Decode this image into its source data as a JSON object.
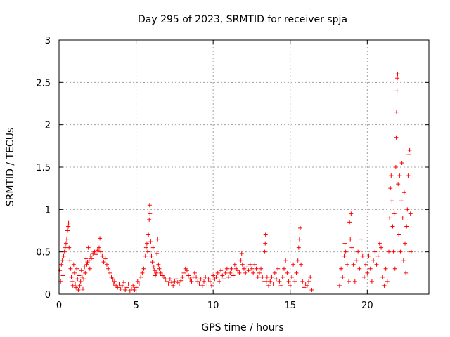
{
  "chart_data": {
    "type": "scatter",
    "title": "Day 295 of 2023, SRMTID for receiver spja",
    "xlabel": "GPS time / hours",
    "ylabel": "SRMTID / TECUs",
    "xlim": [
      0,
      24
    ],
    "ylim": [
      0,
      3
    ],
    "grid": true,
    "marker": "+",
    "marker_color": "#ff0000",
    "x_ticks": [
      0,
      5,
      10,
      15,
      20
    ],
    "x_tick_labels": [
      "0",
      "5",
      "10",
      "15",
      "20"
    ],
    "y_ticks": [
      0,
      0.5,
      1,
      1.5,
      2,
      2.5,
      3
    ],
    "y_tick_labels": [
      "0",
      "0.5",
      "1",
      "1.5",
      "2",
      "2.5",
      "3"
    ],
    "series": [
      {
        "name": "SRMTID",
        "points": [
          [
            0.05,
            0.28
          ],
          [
            0.1,
            0.15
          ],
          [
            0.15,
            0.35
          ],
          [
            0.2,
            0.4
          ],
          [
            0.25,
            0.22
          ],
          [
            0.3,
            0.45
          ],
          [
            0.35,
            0.5
          ],
          [
            0.4,
            0.55
          ],
          [
            0.45,
            0.6
          ],
          [
            0.5,
            0.65
          ],
          [
            0.55,
            0.75
          ],
          [
            0.6,
            0.8
          ],
          [
            0.62,
            0.84
          ],
          [
            0.65,
            0.55
          ],
          [
            0.7,
            0.4
          ],
          [
            0.75,
            0.3
          ],
          [
            0.8,
            0.2
          ],
          [
            0.85,
            0.15
          ],
          [
            0.9,
            0.1
          ],
          [
            0.95,
            0.35
          ],
          [
            1.0,
            0.25
          ],
          [
            1.05,
            0.12
          ],
          [
            1.1,
            0.08
          ],
          [
            1.15,
            0.3
          ],
          [
            1.2,
            0.18
          ],
          [
            1.25,
            0.05
          ],
          [
            1.3,
            0.22
          ],
          [
            1.35,
            0.1
          ],
          [
            1.4,
            0.15
          ],
          [
            1.45,
            0.28
          ],
          [
            1.5,
            0.2
          ],
          [
            1.55,
            0.06
          ],
          [
            1.6,
            0.18
          ],
          [
            1.65,
            0.32
          ],
          [
            1.7,
            0.25
          ],
          [
            1.75,
            0.42
          ],
          [
            1.8,
            0.35
          ],
          [
            1.85,
            0.38
          ],
          [
            1.9,
            0.55
          ],
          [
            1.95,
            0.4
          ],
          [
            2.0,
            0.3
          ],
          [
            2.05,
            0.45
          ],
          [
            2.1,
            0.42
          ],
          [
            2.2,
            0.48
          ],
          [
            2.3,
            0.5
          ],
          [
            2.4,
            0.47
          ],
          [
            2.5,
            0.52
          ],
          [
            2.6,
            0.55
          ],
          [
            2.65,
            0.66
          ],
          [
            2.7,
            0.5
          ],
          [
            2.8,
            0.45
          ],
          [
            2.9,
            0.38
          ],
          [
            3.0,
            0.42
          ],
          [
            3.1,
            0.35
          ],
          [
            3.2,
            0.3
          ],
          [
            3.3,
            0.25
          ],
          [
            3.4,
            0.2
          ],
          [
            3.5,
            0.18
          ],
          [
            3.55,
            0.12
          ],
          [
            3.6,
            0.15
          ],
          [
            3.7,
            0.1
          ],
          [
            3.8,
            0.08
          ],
          [
            3.9,
            0.12
          ],
          [
            4.0,
            0.06
          ],
          [
            4.1,
            0.1
          ],
          [
            4.2,
            0.14
          ],
          [
            4.3,
            0.05
          ],
          [
            4.4,
            0.08
          ],
          [
            4.5,
            0.12
          ],
          [
            4.6,
            0.04
          ],
          [
            4.7,
            0.06
          ],
          [
            4.8,
            0.1
          ],
          [
            4.9,
            0.05
          ],
          [
            5.0,
            0.08
          ],
          [
            5.1,
            0.15
          ],
          [
            5.2,
            0.12
          ],
          [
            5.3,
            0.2
          ],
          [
            5.4,
            0.25
          ],
          [
            5.5,
            0.3
          ],
          [
            5.6,
            0.45
          ],
          [
            5.65,
            0.55
          ],
          [
            5.7,
            0.6
          ],
          [
            5.75,
            0.5
          ],
          [
            5.8,
            0.7
          ],
          [
            5.85,
            0.88
          ],
          [
            5.88,
            1.05
          ],
          [
            5.9,
            0.95
          ],
          [
            5.95,
            0.62
          ],
          [
            6.0,
            0.45
          ],
          [
            6.05,
            0.38
          ],
          [
            6.1,
            0.55
          ],
          [
            6.15,
            0.32
          ],
          [
            6.2,
            0.28
          ],
          [
            6.25,
            0.22
          ],
          [
            6.3,
            0.25
          ],
          [
            6.35,
            0.48
          ],
          [
            6.4,
            0.65
          ],
          [
            6.45,
            0.35
          ],
          [
            6.5,
            0.3
          ],
          [
            6.6,
            0.25
          ],
          [
            6.7,
            0.22
          ],
          [
            6.8,
            0.2
          ],
          [
            6.9,
            0.18
          ],
          [
            7.0,
            0.15
          ],
          [
            7.1,
            0.12
          ],
          [
            7.2,
            0.18
          ],
          [
            7.3,
            0.14
          ],
          [
            7.4,
            0.1
          ],
          [
            7.5,
            0.15
          ],
          [
            7.6,
            0.18
          ],
          [
            7.7,
            0.14
          ],
          [
            7.8,
            0.12
          ],
          [
            7.9,
            0.16
          ],
          [
            8.0,
            0.2
          ],
          [
            8.1,
            0.25
          ],
          [
            8.2,
            0.3
          ],
          [
            8.3,
            0.28
          ],
          [
            8.4,
            0.22
          ],
          [
            8.5,
            0.18
          ],
          [
            8.6,
            0.15
          ],
          [
            8.7,
            0.2
          ],
          [
            8.8,
            0.25
          ],
          [
            8.9,
            0.2
          ],
          [
            9.0,
            0.15
          ],
          [
            9.1,
            0.12
          ],
          [
            9.2,
            0.18
          ],
          [
            9.3,
            0.1
          ],
          [
            9.4,
            0.15
          ],
          [
            9.5,
            0.2
          ],
          [
            9.6,
            0.12
          ],
          [
            9.7,
            0.18
          ],
          [
            9.8,
            0.15
          ],
          [
            9.9,
            0.1
          ],
          [
            10.0,
            0.22
          ],
          [
            10.1,
            0.18
          ],
          [
            10.2,
            0.2
          ],
          [
            10.3,
            0.25
          ],
          [
            10.4,
            0.15
          ],
          [
            10.5,
            0.28
          ],
          [
            10.6,
            0.22
          ],
          [
            10.7,
            0.18
          ],
          [
            10.8,
            0.25
          ],
          [
            10.9,
            0.3
          ],
          [
            11.0,
            0.2
          ],
          [
            11.1,
            0.25
          ],
          [
            11.2,
            0.3
          ],
          [
            11.3,
            0.22
          ],
          [
            11.4,
            0.35
          ],
          [
            11.5,
            0.3
          ],
          [
            11.6,
            0.28
          ],
          [
            11.7,
            0.25
          ],
          [
            11.8,
            0.4
          ],
          [
            11.85,
            0.48
          ],
          [
            11.9,
            0.35
          ],
          [
            12.0,
            0.3
          ],
          [
            12.1,
            0.25
          ],
          [
            12.2,
            0.32
          ],
          [
            12.3,
            0.28
          ],
          [
            12.4,
            0.35
          ],
          [
            12.5,
            0.3
          ],
          [
            12.6,
            0.25
          ],
          [
            12.7,
            0.35
          ],
          [
            12.8,
            0.3
          ],
          [
            12.9,
            0.2
          ],
          [
            13.0,
            0.25
          ],
          [
            13.1,
            0.3
          ],
          [
            13.2,
            0.2
          ],
          [
            13.3,
            0.15
          ],
          [
            13.35,
            0.5
          ],
          [
            13.38,
            0.6
          ],
          [
            13.4,
            0.7
          ],
          [
            13.45,
            0.15
          ],
          [
            13.5,
            0.2
          ],
          [
            13.6,
            0.1
          ],
          [
            13.7,
            0.15
          ],
          [
            13.8,
            0.2
          ],
          [
            13.9,
            0.12
          ],
          [
            14.0,
            0.25
          ],
          [
            14.1,
            0.18
          ],
          [
            14.2,
            0.3
          ],
          [
            14.3,
            0.15
          ],
          [
            14.4,
            0.1
          ],
          [
            14.5,
            0.2
          ],
          [
            14.6,
            0.3
          ],
          [
            14.7,
            0.4
          ],
          [
            14.8,
            0.25
          ],
          [
            14.9,
            0.15
          ],
          [
            15.0,
            0.1
          ],
          [
            15.1,
            0.2
          ],
          [
            15.2,
            0.35
          ],
          [
            15.3,
            0.15
          ],
          [
            15.4,
            0.25
          ],
          [
            15.5,
            0.4
          ],
          [
            15.55,
            0.55
          ],
          [
            15.6,
            0.65
          ],
          [
            15.65,
            0.78
          ],
          [
            15.7,
            0.35
          ],
          [
            15.8,
            0.15
          ],
          [
            15.9,
            0.08
          ],
          [
            16.0,
            0.12
          ],
          [
            16.1,
            0.1
          ],
          [
            16.2,
            0.15
          ],
          [
            16.3,
            0.2
          ],
          [
            16.4,
            0.05
          ],
          [
            18.2,
            0.1
          ],
          [
            18.3,
            0.3
          ],
          [
            18.4,
            0.2
          ],
          [
            18.5,
            0.45
          ],
          [
            18.55,
            0.6
          ],
          [
            18.6,
            0.5
          ],
          [
            18.7,
            0.35
          ],
          [
            18.8,
            0.15
          ],
          [
            18.85,
            0.85
          ],
          [
            18.9,
            0.65
          ],
          [
            18.95,
            0.95
          ],
          [
            19.0,
            0.55
          ],
          [
            19.1,
            0.35
          ],
          [
            19.2,
            0.15
          ],
          [
            19.3,
            0.4
          ],
          [
            19.4,
            0.5
          ],
          [
            19.5,
            0.3
          ],
          [
            19.6,
            0.65
          ],
          [
            19.7,
            0.45
          ],
          [
            19.8,
            0.2
          ],
          [
            19.9,
            0.35
          ],
          [
            20.0,
            0.25
          ],
          [
            20.1,
            0.45
          ],
          [
            20.2,
            0.3
          ],
          [
            20.3,
            0.15
          ],
          [
            20.4,
            0.4
          ],
          [
            20.5,
            0.5
          ],
          [
            20.6,
            0.35
          ],
          [
            20.7,
            0.45
          ],
          [
            20.8,
            0.6
          ],
          [
            20.9,
            0.55
          ],
          [
            21.0,
            0.2
          ],
          [
            21.1,
            0.1
          ],
          [
            21.2,
            0.3
          ],
          [
            21.3,
            0.15
          ],
          [
            21.4,
            0.5
          ],
          [
            21.45,
            0.9
          ],
          [
            21.5,
            1.25
          ],
          [
            21.55,
            1.4
          ],
          [
            21.6,
            1.1
          ],
          [
            21.65,
            0.8
          ],
          [
            21.7,
            0.5
          ],
          [
            21.75,
            0.95
          ],
          [
            21.8,
            0.3
          ],
          [
            21.85,
            1.5
          ],
          [
            21.88,
            1.85
          ],
          [
            21.9,
            2.15
          ],
          [
            21.93,
            2.4
          ],
          [
            21.95,
            2.55
          ],
          [
            21.97,
            2.6
          ],
          [
            22.0,
            1.3
          ],
          [
            22.05,
            0.7
          ],
          [
            22.1,
            1.4
          ],
          [
            22.15,
            0.5
          ],
          [
            22.2,
            1.1
          ],
          [
            22.25,
            1.55
          ],
          [
            22.3,
            0.9
          ],
          [
            22.35,
            0.4
          ],
          [
            22.4,
            1.2
          ],
          [
            22.45,
            0.6
          ],
          [
            22.5,
            0.25
          ],
          [
            22.55,
            0.8
          ],
          [
            22.6,
            1.0
          ],
          [
            22.65,
            1.4
          ],
          [
            22.7,
            1.65
          ],
          [
            22.75,
            1.7
          ],
          [
            22.8,
            0.95
          ],
          [
            22.85,
            0.5
          ]
        ]
      }
    ]
  }
}
